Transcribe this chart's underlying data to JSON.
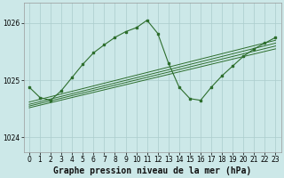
{
  "title": "Graphe pression niveau de la mer (hPa)",
  "background_color": "#cce8e8",
  "grid_color": "#aacccc",
  "line_color": "#2d6e2d",
  "xlim": [
    -0.5,
    23.5
  ],
  "ylim": [
    1023.75,
    1026.35
  ],
  "yticks": [
    1024,
    1025,
    1026
  ],
  "xticks": [
    0,
    1,
    2,
    3,
    4,
    5,
    6,
    7,
    8,
    9,
    10,
    11,
    12,
    13,
    14,
    15,
    16,
    17,
    18,
    19,
    20,
    21,
    22,
    23
  ],
  "tick_fontsize": 5.5,
  "xlabel_fontsize": 7.0,
  "main_x": [
    0,
    1,
    2,
    3,
    4,
    5,
    6,
    7,
    8,
    9,
    10,
    11,
    12,
    13,
    14,
    15,
    16,
    17,
    18,
    19,
    20,
    21,
    22,
    23
  ],
  "main_y": [
    1024.88,
    1024.7,
    1024.65,
    1024.82,
    1025.05,
    1025.28,
    1025.48,
    1025.62,
    1025.75,
    1025.85,
    1025.92,
    1026.05,
    1025.82,
    1025.3,
    1024.88,
    1024.68,
    1024.65,
    1024.88,
    1025.08,
    1025.25,
    1025.42,
    1025.55,
    1025.65,
    1025.75
  ],
  "diag_lines": [
    {
      "x": [
        0,
        23
      ],
      "y": [
        1024.62,
        1025.7
      ]
    },
    {
      "x": [
        0,
        23
      ],
      "y": [
        1024.58,
        1025.65
      ]
    },
    {
      "x": [
        0,
        23
      ],
      "y": [
        1024.55,
        1025.6
      ]
    },
    {
      "x": [
        0,
        23
      ],
      "y": [
        1024.52,
        1025.55
      ]
    }
  ]
}
